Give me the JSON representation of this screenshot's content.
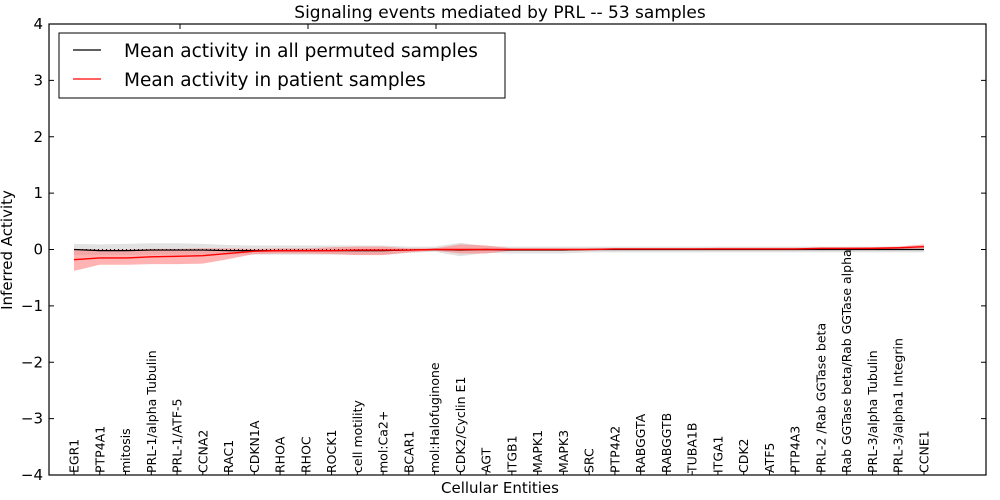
{
  "chart_data": {
    "type": "line",
    "title": "Signaling events mediated by PRL -- 53 samples",
    "xlabel": "Cellular Entities",
    "ylabel": "Inferred Activity",
    "ylim": [
      -4,
      4
    ],
    "yticks": [
      4,
      3,
      2,
      1,
      0,
      -1,
      -2,
      -3,
      -4
    ],
    "ytick_labels": [
      "4",
      "3",
      "2",
      "1",
      "0",
      "−1",
      "−2",
      "−3",
      "−4"
    ],
    "grid": false,
    "legend_position": "top-left",
    "categories": [
      "EGR1",
      "PTP4A1",
      "mitosis",
      "PRL-1/alpha Tubulin",
      "PRL-1/ATF-5",
      "CCNA2",
      "RAC1",
      "CDKN1A",
      "RHOA",
      "RHOC",
      "ROCK1",
      "cell motility",
      "mol:Ca2+",
      "BCAR1",
      "mol:Halofuginone",
      "CDK2/Cyclin E1",
      "AGT",
      "ITGB1",
      "MAPK1",
      "MAPK3",
      "SRC",
      "PTP4A2",
      "RABGGTA",
      "RABGGTB",
      "TUBA1B",
      "ITGA1",
      "CDK2",
      "ATF5",
      "PTP4A3",
      "PRL-2 /Rab GGTase beta",
      "Rab GGTase beta/Rab GGTase alpha",
      "PRL-3/alpha Tubulin",
      "PRL-3/alpha1 Integrin",
      "CCNE1"
    ],
    "series": [
      {
        "name": "Mean activity in all permuted samples",
        "color": "#000000",
        "band_color": "#bfbfbf",
        "values": [
          0.0,
          -0.02,
          -0.02,
          -0.01,
          -0.01,
          -0.01,
          -0.02,
          -0.02,
          -0.02,
          -0.02,
          -0.02,
          -0.02,
          -0.02,
          -0.01,
          0.0,
          -0.01,
          0.0,
          -0.01,
          -0.01,
          -0.01,
          0.0,
          0.0,
          0.0,
          0.0,
          0.0,
          0.0,
          0.0,
          0.0,
          0.0,
          0.0,
          0.0,
          0.0,
          0.0,
          0.0
        ],
        "lower": [
          -0.1,
          -0.1,
          -0.1,
          -0.09,
          -0.09,
          -0.09,
          -0.09,
          -0.09,
          -0.09,
          -0.09,
          -0.09,
          -0.09,
          -0.09,
          -0.06,
          -0.04,
          -0.12,
          -0.06,
          -0.07,
          -0.07,
          -0.07,
          -0.05,
          -0.05,
          -0.05,
          -0.05,
          -0.05,
          -0.05,
          -0.05,
          -0.05,
          -0.05,
          -0.05,
          -0.05,
          -0.05,
          -0.05,
          -0.05
        ],
        "upper": [
          0.1,
          0.09,
          0.1,
          0.11,
          0.11,
          0.1,
          0.08,
          0.07,
          0.07,
          0.07,
          0.07,
          0.07,
          0.07,
          0.05,
          0.05,
          0.12,
          0.06,
          0.05,
          0.05,
          0.05,
          0.05,
          0.05,
          0.05,
          0.05,
          0.05,
          0.05,
          0.05,
          0.05,
          0.05,
          0.05,
          0.05,
          0.05,
          0.05,
          0.05
        ]
      },
      {
        "name": "Mean activity in patient samples",
        "color": "#ff0000",
        "band_color": "#ff8080",
        "values": [
          -0.18,
          -0.15,
          -0.15,
          -0.13,
          -0.12,
          -0.11,
          -0.07,
          -0.03,
          -0.02,
          -0.02,
          -0.02,
          -0.01,
          -0.01,
          -0.01,
          0.0,
          0.0,
          0.0,
          0.0,
          0.0,
          0.0,
          0.0,
          0.01,
          0.01,
          0.01,
          0.01,
          0.01,
          0.01,
          0.01,
          0.01,
          0.02,
          0.02,
          0.02,
          0.03,
          0.05
        ],
        "lower": [
          -0.38,
          -0.27,
          -0.27,
          -0.26,
          -0.26,
          -0.25,
          -0.17,
          -0.08,
          -0.07,
          -0.07,
          -0.08,
          -0.1,
          -0.1,
          -0.05,
          -0.02,
          -0.07,
          -0.07,
          -0.02,
          -0.02,
          -0.02,
          -0.01,
          -0.01,
          -0.01,
          -0.01,
          -0.01,
          -0.01,
          -0.01,
          -0.01,
          -0.01,
          0.0,
          0.0,
          0.0,
          0.0,
          0.02
        ],
        "upper": [
          0.01,
          0.0,
          0.0,
          0.01,
          0.01,
          0.02,
          0.02,
          0.01,
          0.02,
          0.02,
          0.04,
          0.05,
          0.05,
          0.02,
          0.02,
          0.09,
          0.07,
          0.02,
          0.02,
          0.02,
          0.02,
          0.02,
          0.02,
          0.02,
          0.02,
          0.03,
          0.03,
          0.03,
          0.03,
          0.03,
          0.03,
          0.04,
          0.05,
          0.09
        ]
      }
    ]
  }
}
